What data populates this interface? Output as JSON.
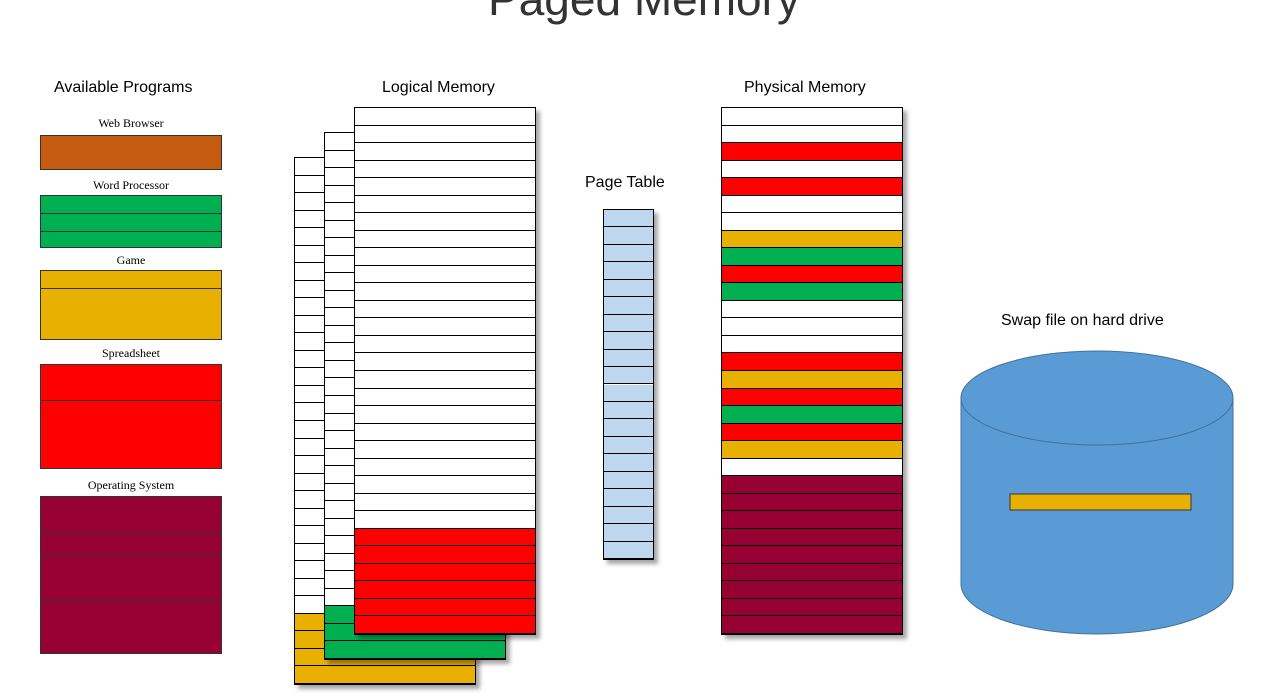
{
  "title": "Paged Memory",
  "headings": {
    "available_programs": "Available Programs",
    "logical_memory": "Logical Memory",
    "page_table": "Page Table",
    "physical_memory": "Physical Memory",
    "swap_file": "Swap file on hard drive"
  },
  "colors": {
    "web_browser": "#C55A11",
    "word_processor": "#00B050",
    "game": "#E8B000",
    "spreadsheet": "#FF0000",
    "operating_system": "#960032",
    "page_table": "#BDD7EE",
    "disk": "#5B9BD5",
    "empty": "#FFFFFF"
  },
  "programs": [
    {
      "label": "Web Browser",
      "color_key": "web_browser",
      "pages": 1
    },
    {
      "label": "Word Processor",
      "color_key": "word_processor",
      "pages": 3
    },
    {
      "label": "Game",
      "color_key": "game",
      "pages": 2
    },
    {
      "label": "Spreadsheet",
      "color_key": "spreadsheet",
      "pages": 2
    },
    {
      "label": "Operating System",
      "color_key": "operating_system",
      "pages": 4
    }
  ],
  "logical_memory": {
    "spaces": [
      {
        "program": "game",
        "rows": 30,
        "colored_rows": 4
      },
      {
        "program": "word_processor",
        "rows": 30,
        "colored_rows": 3
      },
      {
        "program": "spreadsheet",
        "rows": 30,
        "colored_rows": 6
      }
    ]
  },
  "page_table": {
    "rows": 20
  },
  "physical_memory": {
    "frames": [
      "empty",
      "empty",
      "spreadsheet",
      "empty",
      "spreadsheet",
      "empty",
      "empty",
      "game",
      "word_processor",
      "spreadsheet",
      "word_processor",
      "empty",
      "empty",
      "empty",
      "spreadsheet",
      "game",
      "spreadsheet",
      "word_processor",
      "spreadsheet",
      "game",
      "empty",
      "operating_system",
      "operating_system",
      "operating_system",
      "operating_system",
      "operating_system",
      "operating_system",
      "operating_system",
      "operating_system",
      "operating_system"
    ]
  },
  "swap_file": {
    "stored_page": "game"
  }
}
